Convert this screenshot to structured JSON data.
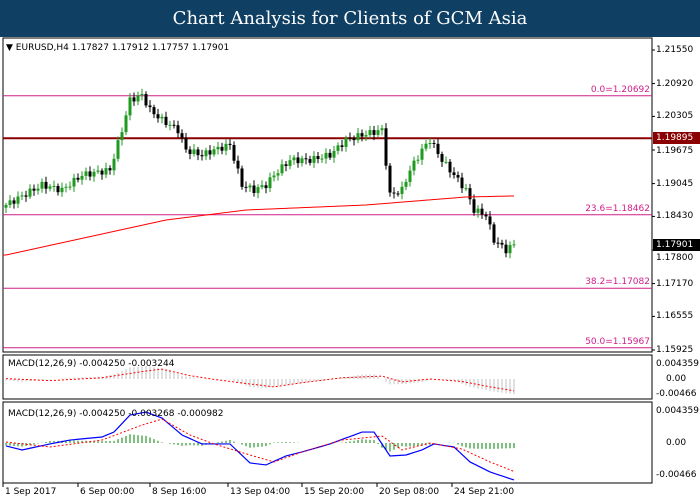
{
  "title": "Chart Analysis for Clients of GCM Asia",
  "chart_data": {
    "type": "candlestick",
    "symbol_header": "EURUSD,H4  1.17827 1.17912 1.17757 1.17901",
    "price_axis": [
      "1.21550",
      "1.20920",
      "1.20305",
      "1.19675",
      "1.19045",
      "1.18430",
      "1.17800",
      "1.17170",
      "1.16555",
      "1.15925"
    ],
    "ylim": [
      1.15925,
      1.2155
    ],
    "price_anchors": [
      [
        0,
        1.18644
      ],
      [
        9,
        1.19019
      ],
      [
        14,
        1.18925
      ],
      [
        19,
        1.19206
      ],
      [
        26,
        1.193
      ],
      [
        29,
        1.2005
      ],
      [
        31,
        1.20613
      ],
      [
        34,
        1.20706
      ],
      [
        36,
        1.20425
      ],
      [
        39,
        1.20238
      ],
      [
        43,
        1.2005
      ],
      [
        45,
        1.19675
      ],
      [
        49,
        1.19581
      ],
      [
        52,
        1.19675
      ],
      [
        56,
        1.19769
      ],
      [
        59,
        1.19019
      ],
      [
        62,
        1.18925
      ],
      [
        65,
        1.19019
      ],
      [
        67,
        1.19206
      ],
      [
        71,
        1.19488
      ],
      [
        76,
        1.19488
      ],
      [
        81,
        1.19581
      ],
      [
        85,
        1.19863
      ],
      [
        89,
        1.19956
      ],
      [
        94,
        1.2005
      ],
      [
        96,
        1.18831
      ],
      [
        99,
        1.18925
      ],
      [
        101,
        1.193
      ],
      [
        104,
        1.19675
      ],
      [
        106,
        1.19863
      ],
      [
        109,
        1.19488
      ],
      [
        112,
        1.19206
      ],
      [
        115,
        1.18925
      ],
      [
        117,
        1.1855
      ],
      [
        120,
        1.18456
      ],
      [
        122,
        1.17988
      ],
      [
        125,
        1.178
      ],
      [
        127,
        1.17901
      ]
    ],
    "ma_anchors": [
      [
        0,
        1.17706
      ],
      [
        40,
        1.18363
      ],
      [
        60,
        1.1855
      ],
      [
        90,
        1.18644
      ],
      [
        115,
        1.18794
      ],
      [
        127,
        1.18813
      ]
    ],
    "resistance": {
      "value": 1.19895,
      "label": "1.19895"
    },
    "current_price": {
      "value": 1.17901,
      "label": "1.17901"
    },
    "fib_levels": [
      {
        "value": 1.20692,
        "label": "0.0=1.20692"
      },
      {
        "value": 1.18462,
        "label": "23.6=1.18462"
      },
      {
        "value": 1.17082,
        "label": "38.2=1.17082"
      },
      {
        "value": 1.15967,
        "label": "50.0=1.15967"
      }
    ],
    "macd1": {
      "label": "MACD(12,26,9) -0.004250 -0.003244",
      "axis": [
        "0.004359",
        "0.00",
        "-0.00466"
      ]
    },
    "macd2": {
      "label": "MACD(12,26,9) -0.004250 -0.003268 -0.000982",
      "axis": [
        "0.004359",
        "0.00",
        "-0.00466"
      ]
    },
    "macd_main_e3": [
      [
        0,
        -0.34
      ],
      [
        4,
        -0.8
      ],
      [
        11,
        -0.11
      ],
      [
        16,
        0.34
      ],
      [
        24,
        0.69
      ],
      [
        27,
        1.26
      ],
      [
        31,
        3.21
      ],
      [
        35,
        3.56
      ],
      [
        39,
        2.87
      ],
      [
        44,
        0.92
      ],
      [
        49,
        -0.11
      ],
      [
        56,
        -0.11
      ],
      [
        61,
        -2.29
      ],
      [
        65,
        -2.52
      ],
      [
        70,
        -1.49
      ],
      [
        74,
        -1.03
      ],
      [
        81,
        -0.11
      ],
      [
        89,
        1.26
      ],
      [
        92,
        1.26
      ],
      [
        96,
        -1.49
      ],
      [
        100,
        -1.38
      ],
      [
        104,
        -0.8
      ],
      [
        107,
        -0.11
      ],
      [
        112,
        -0.46
      ],
      [
        116,
        -2.18
      ],
      [
        121,
        -3.33
      ],
      [
        127,
        -4.25
      ]
    ],
    "macd_signal_e3": [
      [
        0,
        0.11
      ],
      [
        11,
        -0.46
      ],
      [
        24,
        0.34
      ],
      [
        34,
        2.06
      ],
      [
        39,
        2.75
      ],
      [
        46,
        0.92
      ],
      [
        52,
        -0.11
      ],
      [
        61,
        -1.38
      ],
      [
        67,
        -2.18
      ],
      [
        74,
        -1.03
      ],
      [
        84,
        0.34
      ],
      [
        94,
        0.8
      ],
      [
        99,
        -0.8
      ],
      [
        106,
        0
      ],
      [
        114,
        -0.69
      ],
      [
        121,
        -2.18
      ],
      [
        127,
        -3.27
      ]
    ],
    "x_labels": [
      "1 Sep 2017",
      "6 Sep 00:00",
      "8 Sep 16:00",
      "13 Sep 04:00",
      "15 Sep 20:00",
      "20 Sep 08:00",
      "24 Sep 21:00"
    ],
    "colors": {
      "bull": "#1f9a1f",
      "bear": "#000000",
      "ma": "#ff0000",
      "fib": "#d0208a",
      "resistance": "#8b0000",
      "macd": "#0000ff",
      "signal": "#ff0000",
      "hist": "#008000",
      "hist1": "#c0c0c0"
    }
  }
}
